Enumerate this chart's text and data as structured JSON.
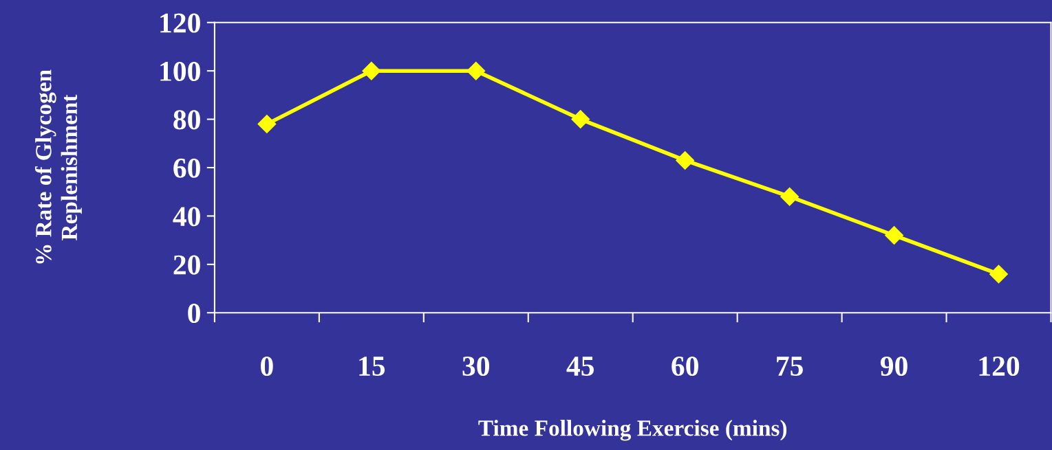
{
  "chart_data": {
    "type": "line",
    "xlabel": "Time Following Exercise (mins)",
    "ylabel": "% Rate of Glycogen\nReplenishment",
    "categories": [
      "0",
      "15",
      "30",
      "45",
      "60",
      "75",
      "90",
      "120"
    ],
    "series": [
      {
        "color": "#ffff00",
        "values": [
          78,
          100,
          100,
          80,
          63,
          48,
          32,
          16
        ]
      }
    ],
    "ylim": [
      0,
      120
    ],
    "yticks": [
      0,
      20,
      40,
      60,
      80,
      100,
      120
    ],
    "marker": "diamond",
    "line_style": "solid",
    "grid": false,
    "legend": false
  }
}
